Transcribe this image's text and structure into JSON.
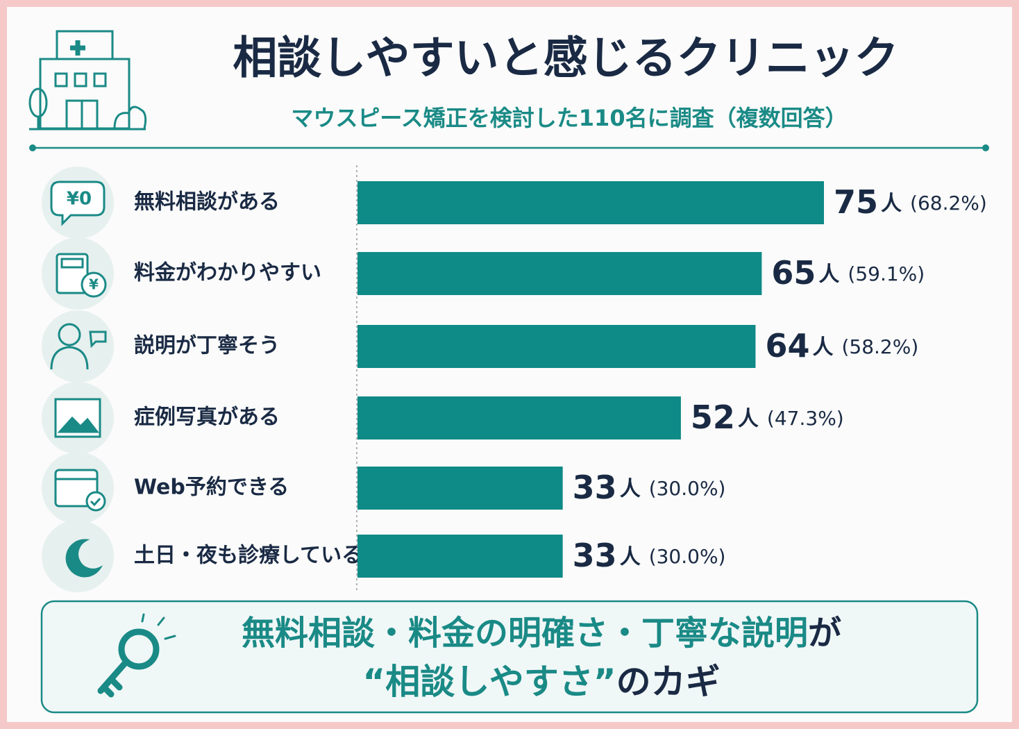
{
  "chart_data": {
    "type": "bar",
    "orientation": "horizontal",
    "title": "相談しやすいと感じるクリニック",
    "subtitle": "マウスピース矯正を検討した110名に調査（複数回答）",
    "categories": [
      "無料相談がある",
      "料金がわかりやすい",
      "説明が丁寧そう",
      "症例写真がある",
      "Web予約できる",
      "土日・夜も診療している"
    ],
    "values": [
      75,
      65,
      64,
      52,
      33,
      33
    ],
    "value_labels": [
      "75人",
      "65人",
      "64人",
      "52人",
      "33人",
      "33人"
    ],
    "shares": [
      68.2,
      59.1,
      58.2,
      47.3,
      30.0,
      30.0
    ],
    "share_labels": [
      "(68.2%)",
      "(59.1%)",
      "(58.2%)",
      "(47.3%)",
      "(30.0%)",
      "(30.0%)"
    ],
    "color": "#0e8a87",
    "icon_texts": [
      "¥0",
      "¥"
    ],
    "footer": {
      "line1": [
        "無料相談・料金の明確さ・丁寧な説明",
        "が"
      ],
      "line2": [
        "“相談しやすさ”",
        "のカギ"
      ]
    }
  }
}
